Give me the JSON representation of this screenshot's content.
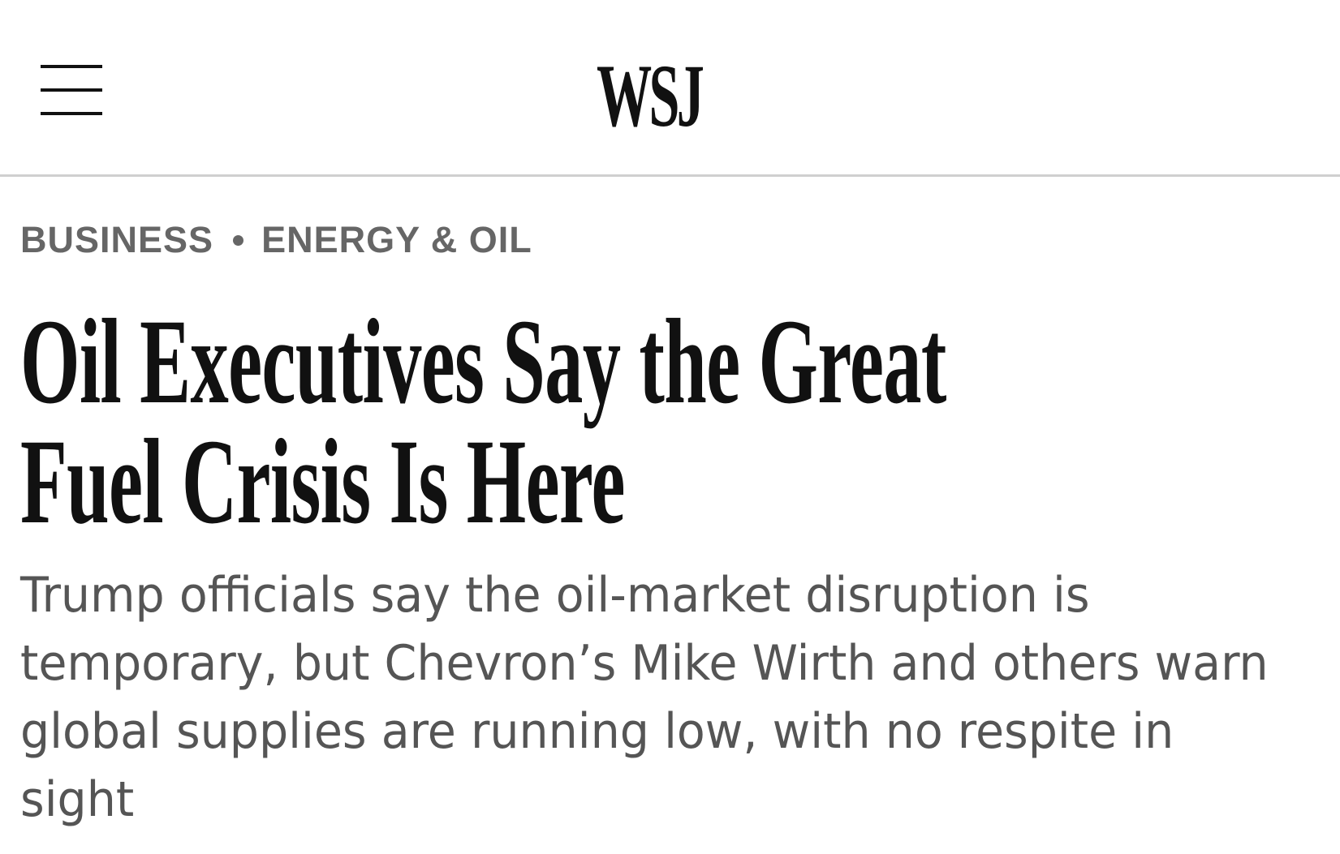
{
  "header": {
    "logo_text": "WSJ",
    "menu_icon": "hamburger-menu-icon"
  },
  "breadcrumb": {
    "section": "BUSINESS",
    "subsection": "ENERGY & OIL"
  },
  "article": {
    "headline_lines": [
      "Oil Executives Say the Great",
      "Fuel Crisis Is Here"
    ],
    "dek_lines": [
      "Trump officials say the oil-market disruption is",
      "temporary, but Chevron’s Mike Wirth and others warn",
      "global supplies are running low, with no respite in",
      "sight"
    ]
  },
  "colors": {
    "text_primary": "#111111",
    "text_secondary": "#666666",
    "dek": "#555555",
    "divider": "#cfcfcf"
  }
}
